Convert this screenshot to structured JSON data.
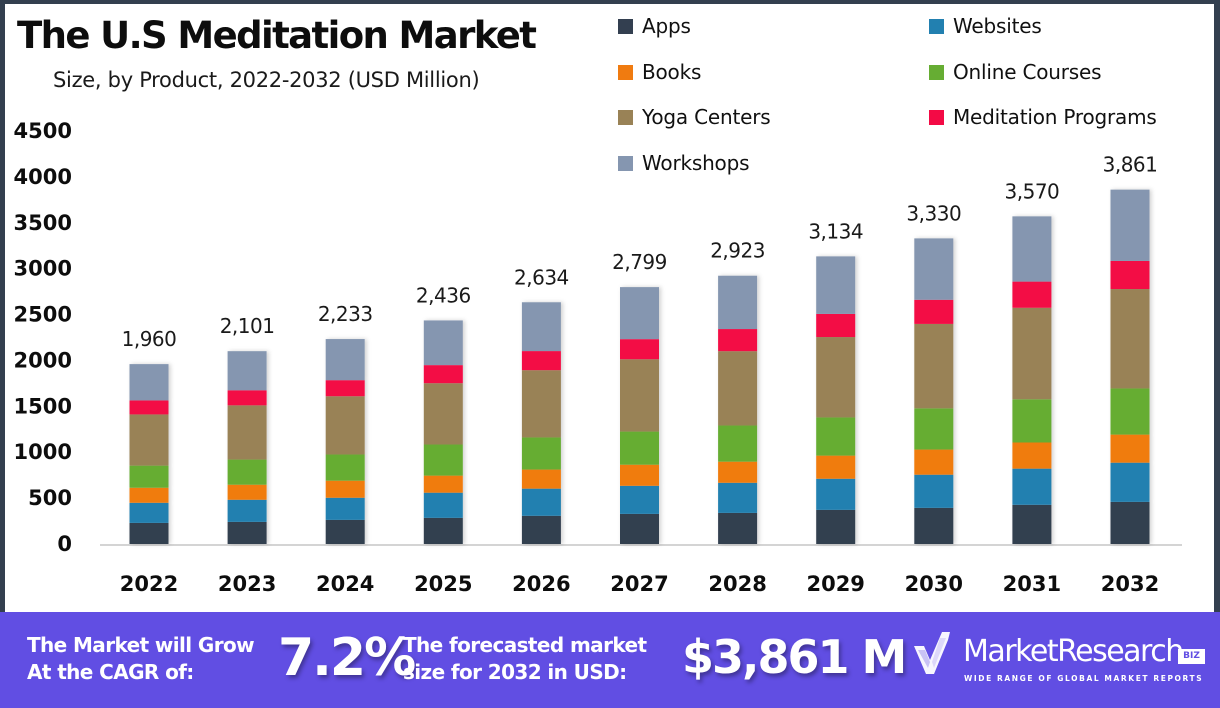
{
  "header": {
    "title": "The U.S Meditation Market",
    "subtitle": "Size, by Product, 2022-2032 (USD Million)"
  },
  "legend": [
    {
      "label": "Apps",
      "color": "#333f50"
    },
    {
      "label": "Websites",
      "color": "#2280b0"
    },
    {
      "label": "Books",
      "color": "#f07b10"
    },
    {
      "label": "Online Courses",
      "color": "#66ad33"
    },
    {
      "label": "Yoga Centers",
      "color": "#998256"
    },
    {
      "label": "Meditation Programs",
      "color": "#f30a45"
    },
    {
      "label": "Workshops",
      "color": "#8596b0"
    }
  ],
  "chart_data": {
    "type": "bar",
    "stacked": true,
    "title": "The U.S Meditation Market",
    "subtitle": "Size, by Product, 2022-2032 (USD Million)",
    "xlabel": "",
    "ylabel": "",
    "categories": [
      "2022",
      "2023",
      "2024",
      "2025",
      "2026",
      "2027",
      "2028",
      "2029",
      "2030",
      "2031",
      "2032"
    ],
    "ylim": [
      0,
      4500
    ],
    "yticks": [
      0,
      500,
      1000,
      1500,
      2000,
      2500,
      3000,
      3500,
      4000,
      4500
    ],
    "ytick_labels": [
      "0",
      "500",
      "1000",
      "1500",
      "2000",
      "2500",
      "3000",
      "3500",
      "4000",
      "4500"
    ],
    "grid": false,
    "legend_position": "top-right",
    "series": [
      {
        "name": "Apps",
        "color": "#333f50",
        "values": [
          230,
          241,
          263,
          285,
          307,
          328,
          339,
          372,
          394,
          427,
          459
        ]
      },
      {
        "name": "Websites",
        "color": "#2280b0",
        "values": [
          219,
          241,
          241,
          274,
          296,
          306,
          328,
          339,
          361,
          394,
          427
        ]
      },
      {
        "name": "Books",
        "color": "#f07b10",
        "values": [
          164,
          164,
          186,
          186,
          208,
          230,
          230,
          252,
          274,
          285,
          306
        ]
      },
      {
        "name": "Online Courses",
        "color": "#66ad33",
        "values": [
          241,
          274,
          285,
          339,
          350,
          361,
          394,
          416,
          449,
          471,
          503
        ]
      },
      {
        "name": "Yoga Centers",
        "color": "#998256",
        "values": [
          558,
          591,
          635,
          668,
          733,
          788,
          810,
          876,
          920,
          997,
          1083
        ]
      },
      {
        "name": "Meditation Programs",
        "color": "#f30a45",
        "values": [
          153,
          164,
          175,
          197,
          208,
          219,
          241,
          252,
          263,
          285,
          306
        ]
      },
      {
        "name": "Workshops",
        "color": "#8596b0",
        "values": [
          395,
          426,
          448,
          487,
          532,
          567,
          581,
          627,
          669,
          711,
          777
        ]
      }
    ],
    "totals": [
      1960,
      2101,
      2233,
      2436,
      2634,
      2799,
      2923,
      3134,
      3330,
      3570,
      3861
    ],
    "total_labels": [
      "1,960",
      "2,101",
      "2,233",
      "2,436",
      "2,634",
      "2,799",
      "2,923",
      "3,134",
      "3,330",
      "3,570",
      "3,861"
    ]
  },
  "banner": {
    "cagr_text_line1": "The Market will Grow",
    "cagr_text_line2": "At the CAGR of:",
    "cagr_value": "7.2%",
    "forecast_text_line1": "The forecasted market",
    "forecast_text_line2": "size for 2032 in USD:",
    "forecast_value": "$3,861 M",
    "background_color": "#614ee3"
  },
  "logo": {
    "icon": "checkmark-shield-icon",
    "name": "MarketResearch",
    "badge": "BIZ",
    "tagline": "WIDE RANGE OF GLOBAL MARKET REPORTS"
  }
}
